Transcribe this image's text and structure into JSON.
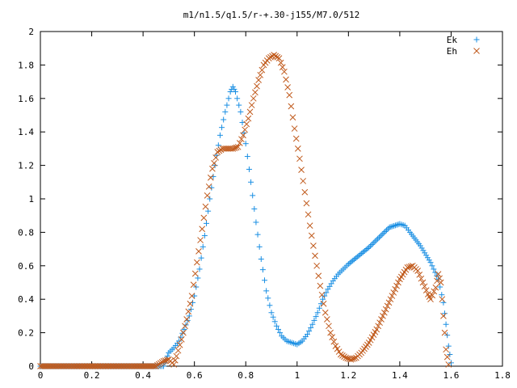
{
  "chart_data": {
    "type": "scatter",
    "title": "m1/n1.5/q1.5/r-+.30-j155/M7.0/512",
    "xlabel": "",
    "ylabel": "",
    "xlim": [
      0,
      1.8
    ],
    "ylim": [
      0,
      2
    ],
    "xticks": [
      "0",
      "0.2",
      "0.4",
      "0.6",
      "0.8",
      "1",
      "1.2",
      "1.4",
      "1.6",
      "1.8"
    ],
    "yticks": [
      "0",
      "0.2",
      "0.4",
      "0.6",
      "0.8",
      "1",
      "1.2",
      "1.4",
      "1.6",
      "1.8",
      "2"
    ],
    "grid": false,
    "legend_position": "top-right",
    "series": [
      {
        "name": "Ek",
        "marker": "plus",
        "color": "#1a8fe3",
        "points": [
          [
            0.0,
            0
          ],
          [
            0.05,
            0
          ],
          [
            0.1,
            0
          ],
          [
            0.15,
            0
          ],
          [
            0.2,
            0
          ],
          [
            0.25,
            0
          ],
          [
            0.3,
            0
          ],
          [
            0.35,
            0
          ],
          [
            0.4,
            0
          ],
          [
            0.45,
            0
          ],
          [
            0.48,
            0
          ],
          [
            0.49,
            0.04
          ],
          [
            0.5,
            0.08
          ],
          [
            0.52,
            0.11
          ],
          [
            0.54,
            0.15
          ],
          [
            0.56,
            0.22
          ],
          [
            0.58,
            0.3
          ],
          [
            0.6,
            0.42
          ],
          [
            0.62,
            0.58
          ],
          [
            0.64,
            0.78
          ],
          [
            0.66,
            1.0
          ],
          [
            0.68,
            1.2
          ],
          [
            0.7,
            1.38
          ],
          [
            0.72,
            1.52
          ],
          [
            0.74,
            1.64
          ],
          [
            0.75,
            1.67
          ],
          [
            0.76,
            1.64
          ],
          [
            0.78,
            1.52
          ],
          [
            0.8,
            1.33
          ],
          [
            0.82,
            1.1
          ],
          [
            0.84,
            0.86
          ],
          [
            0.86,
            0.64
          ],
          [
            0.88,
            0.45
          ],
          [
            0.9,
            0.32
          ],
          [
            0.92,
            0.24
          ],
          [
            0.94,
            0.18
          ],
          [
            0.96,
            0.15
          ],
          [
            0.98,
            0.14
          ],
          [
            1.0,
            0.13
          ],
          [
            1.02,
            0.15
          ],
          [
            1.04,
            0.19
          ],
          [
            1.06,
            0.25
          ],
          [
            1.08,
            0.32
          ],
          [
            1.1,
            0.4
          ],
          [
            1.12,
            0.46
          ],
          [
            1.14,
            0.51
          ],
          [
            1.16,
            0.55
          ],
          [
            1.18,
            0.58
          ],
          [
            1.2,
            0.61
          ],
          [
            1.24,
            0.66
          ],
          [
            1.28,
            0.71
          ],
          [
            1.32,
            0.77
          ],
          [
            1.36,
            0.83
          ],
          [
            1.4,
            0.85
          ],
          [
            1.42,
            0.84
          ],
          [
            1.44,
            0.8
          ],
          [
            1.48,
            0.72
          ],
          [
            1.52,
            0.62
          ],
          [
            1.55,
            0.52
          ],
          [
            1.57,
            0.38
          ],
          [
            1.58,
            0.25
          ],
          [
            1.59,
            0.12
          ],
          [
            1.6,
            0.02
          ]
        ]
      },
      {
        "name": "Eh",
        "marker": "cross",
        "color": "#c05a1c",
        "points": [
          [
            0.0,
            0
          ],
          [
            0.05,
            0
          ],
          [
            0.1,
            0
          ],
          [
            0.15,
            0
          ],
          [
            0.2,
            0
          ],
          [
            0.25,
            0
          ],
          [
            0.3,
            0
          ],
          [
            0.35,
            0
          ],
          [
            0.4,
            0
          ],
          [
            0.45,
            0
          ],
          [
            0.48,
            0.03
          ],
          [
            0.5,
            0.04
          ],
          [
            0.52,
            0.01
          ],
          [
            0.53,
            0.06
          ],
          [
            0.55,
            0.16
          ],
          [
            0.57,
            0.28
          ],
          [
            0.59,
            0.42
          ],
          [
            0.61,
            0.62
          ],
          [
            0.63,
            0.82
          ],
          [
            0.65,
            1.02
          ],
          [
            0.67,
            1.18
          ],
          [
            0.69,
            1.28
          ],
          [
            0.71,
            1.3
          ],
          [
            0.73,
            1.3
          ],
          [
            0.75,
            1.3
          ],
          [
            0.77,
            1.31
          ],
          [
            0.79,
            1.38
          ],
          [
            0.81,
            1.48
          ],
          [
            0.83,
            1.6
          ],
          [
            0.85,
            1.71
          ],
          [
            0.87,
            1.8
          ],
          [
            0.89,
            1.84
          ],
          [
            0.91,
            1.86
          ],
          [
            0.93,
            1.84
          ],
          [
            0.95,
            1.76
          ],
          [
            0.97,
            1.62
          ],
          [
            0.99,
            1.42
          ],
          [
            1.01,
            1.24
          ],
          [
            1.03,
            1.04
          ],
          [
            1.05,
            0.84
          ],
          [
            1.07,
            0.66
          ],
          [
            1.09,
            0.48
          ],
          [
            1.11,
            0.32
          ],
          [
            1.13,
            0.2
          ],
          [
            1.15,
            0.12
          ],
          [
            1.17,
            0.07
          ],
          [
            1.19,
            0.05
          ],
          [
            1.21,
            0.04
          ],
          [
            1.23,
            0.05
          ],
          [
            1.25,
            0.08
          ],
          [
            1.28,
            0.14
          ],
          [
            1.31,
            0.22
          ],
          [
            1.34,
            0.32
          ],
          [
            1.37,
            0.42
          ],
          [
            1.4,
            0.52
          ],
          [
            1.43,
            0.59
          ],
          [
            1.45,
            0.6
          ],
          [
            1.47,
            0.57
          ],
          [
            1.49,
            0.5
          ],
          [
            1.51,
            0.43
          ],
          [
            1.52,
            0.4
          ],
          [
            1.54,
            0.47
          ],
          [
            1.55,
            0.55
          ],
          [
            1.56,
            0.5
          ],
          [
            1.57,
            0.3
          ],
          [
            1.58,
            0.1
          ],
          [
            1.59,
            0.01
          ]
        ]
      }
    ]
  }
}
